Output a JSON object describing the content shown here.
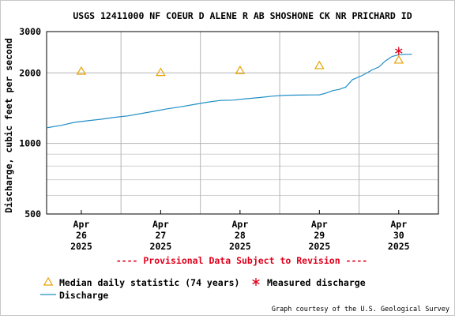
{
  "chart_data": {
    "type": "line",
    "title": "USGS 12411000 NF COEUR D ALENE R AB SHOSHONE CK NR PRICHARD ID",
    "ylabel": "Discharge, cubic feet per second",
    "xlabel": "",
    "y_scale": "log",
    "ylim": [
      500,
      3000
    ],
    "y_ticks": [
      500,
      1000,
      2000,
      3000
    ],
    "xlim": [
      "2025-04-25T13:30",
      "2025-04-30T12:00"
    ],
    "x_ticks": [
      {
        "t": "2025-04-26T00:00",
        "label": [
          "Apr",
          "26",
          "2025"
        ]
      },
      {
        "t": "2025-04-27T00:00",
        "label": [
          "Apr",
          "27",
          "2025"
        ]
      },
      {
        "t": "2025-04-28T00:00",
        "label": [
          "Apr",
          "28",
          "2025"
        ]
      },
      {
        "t": "2025-04-29T00:00",
        "label": [
          "Apr",
          "29",
          "2025"
        ]
      },
      {
        "t": "2025-04-30T00:00",
        "label": [
          "Apr",
          "30",
          "2025"
        ]
      }
    ],
    "grid": true,
    "series": [
      {
        "name": "Discharge",
        "kind": "line",
        "color": "#1f8ec7",
        "points": [
          [
            "2025-04-25T13:30",
            1165
          ],
          [
            "2025-04-25T18:00",
            1195
          ],
          [
            "2025-04-25T22:00",
            1230
          ],
          [
            "2025-04-26T02:00",
            1250
          ],
          [
            "2025-04-26T06:00",
            1268
          ],
          [
            "2025-04-26T10:00",
            1292
          ],
          [
            "2025-04-26T14:00",
            1310
          ],
          [
            "2025-04-26T18:00",
            1340
          ],
          [
            "2025-04-26T22:00",
            1372
          ],
          [
            "2025-04-27T02:00",
            1405
          ],
          [
            "2025-04-27T06:00",
            1432
          ],
          [
            "2025-04-27T10:00",
            1465
          ],
          [
            "2025-04-27T14:00",
            1498
          ],
          [
            "2025-04-27T18:00",
            1525
          ],
          [
            "2025-04-27T22:00",
            1530
          ],
          [
            "2025-04-28T02:00",
            1552
          ],
          [
            "2025-04-28T06:00",
            1570
          ],
          [
            "2025-04-28T10:00",
            1592
          ],
          [
            "2025-04-28T14:00",
            1605
          ],
          [
            "2025-04-28T18:00",
            1608
          ],
          [
            "2025-04-28T22:00",
            1610
          ],
          [
            "2025-04-29T00:00",
            1612
          ],
          [
            "2025-04-29T02:00",
            1640
          ],
          [
            "2025-04-29T04:00",
            1680
          ],
          [
            "2025-04-29T06:00",
            1700
          ],
          [
            "2025-04-29T08:00",
            1740
          ],
          [
            "2025-04-29T10:00",
            1870
          ],
          [
            "2025-04-29T13:00",
            1950
          ],
          [
            "2025-04-29T16:00",
            2060
          ],
          [
            "2025-04-29T18:00",
            2120
          ],
          [
            "2025-04-29T20:00",
            2250
          ],
          [
            "2025-04-29T22:00",
            2350
          ],
          [
            "2025-04-30T00:00",
            2390
          ],
          [
            "2025-04-30T02:00",
            2400
          ],
          [
            "2025-04-30T04:00",
            2400
          ]
        ]
      },
      {
        "name": "Median daily statistic (74 years)",
        "kind": "triangle",
        "color": "#e8a000",
        "points": [
          [
            "2025-04-26T00:00",
            2035
          ],
          [
            "2025-04-27T00:00",
            2010
          ],
          [
            "2025-04-28T00:00",
            2050
          ],
          [
            "2025-04-29T00:00",
            2150
          ],
          [
            "2025-04-30T00:00",
            2270
          ]
        ]
      },
      {
        "name": "Measured discharge",
        "kind": "star",
        "color": "#e0001c",
        "points": [
          [
            "2025-04-30T00:00",
            2480
          ]
        ]
      }
    ],
    "annotation": "---- Provisional Data Subject to Revision ----",
    "credit": "Graph courtesy of the U.S. Geological Survey"
  }
}
